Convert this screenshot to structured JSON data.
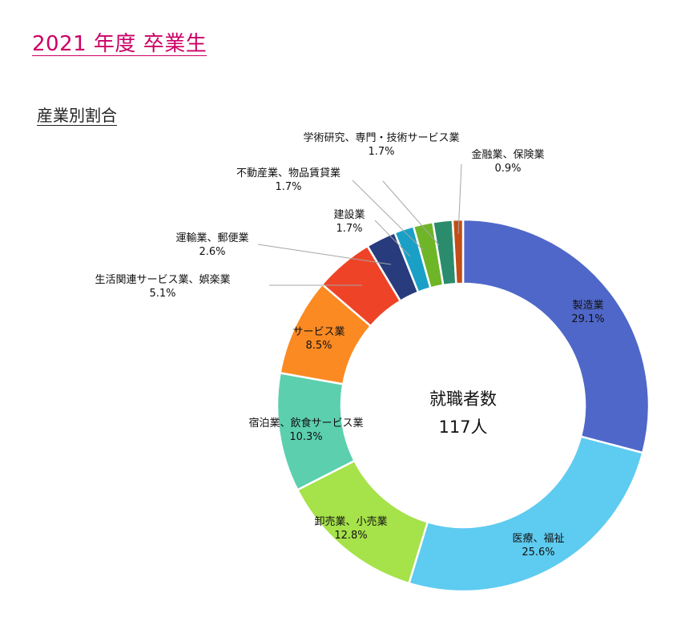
{
  "page": {
    "title": "2021 年度 卒業生",
    "section_title": "産業別割合"
  },
  "chart_data": {
    "type": "pie",
    "variant": "donut",
    "title": "産業別割合",
    "center_label": "就職者数",
    "center_value": "117人",
    "unit": "%",
    "slices": [
      {
        "label": "製造業",
        "value": 29.1,
        "color": "#4f67c8"
      },
      {
        "label": "医療、福祉",
        "value": 25.6,
        "color": "#5ecbf0"
      },
      {
        "label": "卸売業、小売業",
        "value": 12.8,
        "color": "#a6e24a"
      },
      {
        "label": "宿泊業、飲食サービス業",
        "value": 10.3,
        "color": "#5ccfae"
      },
      {
        "label": "サービス業",
        "value": 8.5,
        "color": "#fb8a23"
      },
      {
        "label": "生活関連サービス業、娯楽業",
        "value": 5.1,
        "color": "#ee4326"
      },
      {
        "label": "運輸業、郵便業",
        "value": 2.6,
        "color": "#283b7c"
      },
      {
        "label": "建設業",
        "value": 1.7,
        "color": "#1aa0c6"
      },
      {
        "label": "不動産業、物品賃貸業",
        "value": 1.7,
        "color": "#6fb528"
      },
      {
        "label": "学術研究、専門・技術サービス業",
        "value": 1.7,
        "color": "#2a8c6c"
      },
      {
        "label": "金融業、保険業",
        "value": 0.9,
        "color": "#c24d16"
      }
    ]
  }
}
